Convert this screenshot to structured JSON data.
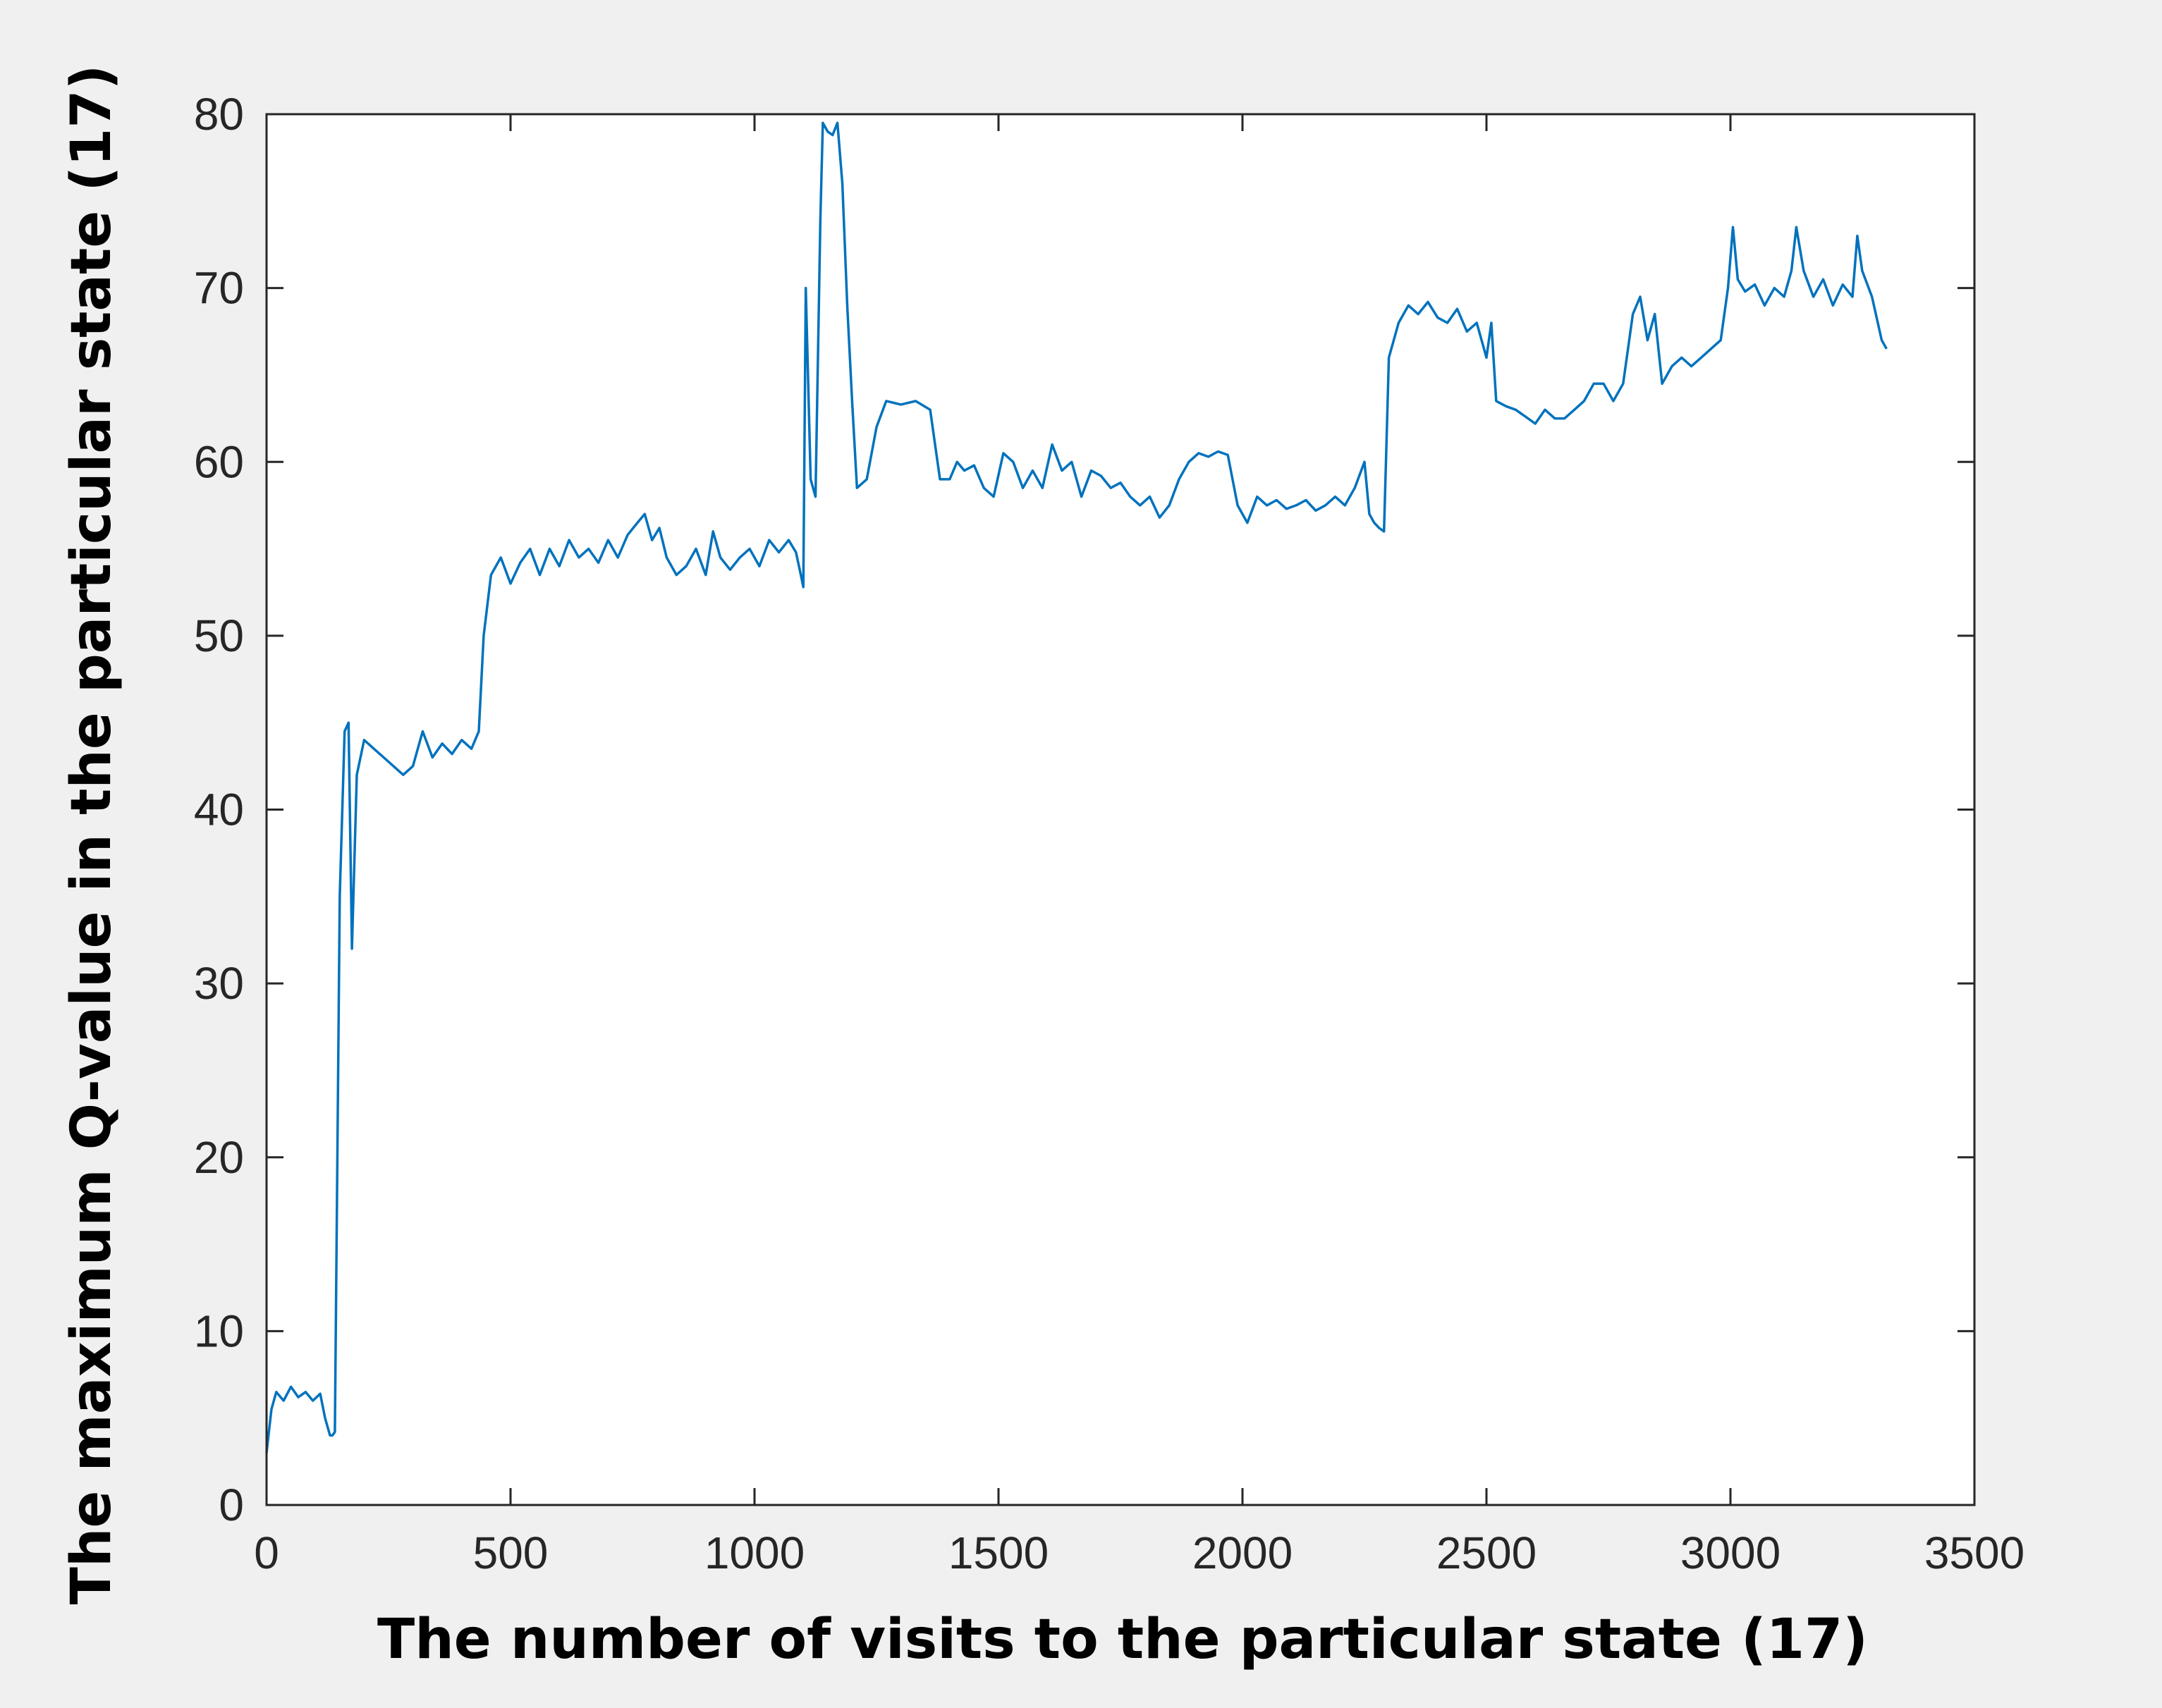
{
  "chart_data": {
    "type": "line",
    "title": "",
    "xlabel": "The number of visits to the particular state (17)",
    "ylabel": "The maximum Q-value in the particular state (17)",
    "xlim": [
      0,
      3500
    ],
    "ylim": [
      0,
      80
    ],
    "xticks": [
      0,
      500,
      1000,
      1500,
      2000,
      2500,
      3000,
      3500
    ],
    "yticks": [
      0,
      10,
      20,
      30,
      40,
      50,
      60,
      70,
      80
    ],
    "grid": false,
    "legend": "none",
    "colors": {
      "line": "#0072BD",
      "axes_background": "#ffffff",
      "figure_background": "#f0f0f0",
      "axes": "#262626"
    },
    "series": [
      {
        "x": [
          0,
          10,
          20,
          35,
          50,
          65,
          80,
          95,
          110,
          120,
          130,
          135,
          140,
          150,
          160,
          168,
          175,
          185,
          200,
          220,
          240,
          260,
          280,
          300,
          320,
          340,
          360,
          380,
          400,
          420,
          435,
          445,
          460,
          480,
          500,
          520,
          540,
          560,
          580,
          600,
          620,
          640,
          660,
          680,
          700,
          720,
          740,
          760,
          775,
          790,
          805,
          820,
          840,
          860,
          880,
          900,
          915,
          930,
          950,
          970,
          990,
          1010,
          1030,
          1050,
          1070,
          1085,
          1095,
          1100,
          1105,
          1115,
          1125,
          1135,
          1140,
          1150,
          1160,
          1170,
          1180,
          1190,
          1200,
          1210,
          1230,
          1250,
          1270,
          1300,
          1330,
          1360,
          1380,
          1400,
          1415,
          1430,
          1450,
          1470,
          1490,
          1510,
          1530,
          1550,
          1570,
          1590,
          1610,
          1630,
          1650,
          1670,
          1690,
          1710,
          1730,
          1750,
          1770,
          1790,
          1810,
          1830,
          1850,
          1870,
          1890,
          1910,
          1930,
          1950,
          1970,
          1990,
          2010,
          2030,
          2050,
          2070,
          2090,
          2110,
          2130,
          2150,
          2170,
          2190,
          2210,
          2230,
          2250,
          2260,
          2270,
          2280,
          2290,
          2300,
          2320,
          2340,
          2360,
          2380,
          2400,
          2420,
          2440,
          2460,
          2480,
          2500,
          2510,
          2520,
          2540,
          2560,
          2580,
          2600,
          2620,
          2640,
          2660,
          2680,
          2700,
          2720,
          2740,
          2760,
          2780,
          2800,
          2815,
          2830,
          2845,
          2860,
          2880,
          2900,
          2920,
          2940,
          2960,
          2980,
          2995,
          3005,
          3015,
          3030,
          3050,
          3070,
          3090,
          3110,
          3125,
          3135,
          3150,
          3170,
          3190,
          3210,
          3230,
          3250,
          3260,
          3270,
          3290,
          3310,
          3320
        ],
        "y": [
          3,
          5.5,
          6.5,
          6,
          6.8,
          6.2,
          6.5,
          6,
          6.4,
          5,
          4,
          4,
          4.2,
          35,
          44.5,
          45,
          32,
          42,
          44,
          43.5,
          43,
          42.5,
          42,
          42.5,
          44.5,
          43,
          43.8,
          43.2,
          44,
          43.5,
          44.5,
          50,
          53.5,
          54.5,
          53,
          54.2,
          55,
          53.5,
          55,
          54,
          55.5,
          54.5,
          55,
          54.2,
          55.5,
          54.5,
          55.8,
          56.5,
          57,
          55.5,
          56.2,
          54.5,
          53.5,
          54,
          55,
          53.5,
          56,
          54.5,
          53.8,
          54.5,
          55,
          54,
          55.5,
          54.8,
          55.5,
          54.8,
          53.5,
          52.8,
          70,
          59,
          58,
          74,
          79.5,
          79,
          78.8,
          79.5,
          76,
          69,
          63.5,
          58.5,
          59,
          62,
          63.5,
          63.3,
          63.5,
          63,
          59,
          59,
          60,
          59.5,
          59.8,
          58.5,
          58,
          60.5,
          60,
          58.5,
          59.5,
          58.5,
          61,
          59.5,
          60,
          58,
          59.5,
          59.2,
          58.5,
          58.8,
          58,
          57.5,
          58,
          56.8,
          57.5,
          59,
          60,
          60.5,
          60.3,
          60.6,
          60.4,
          57.5,
          56.5,
          58,
          57.5,
          57.8,
          57.3,
          57.5,
          57.8,
          57.2,
          57.5,
          58,
          57.5,
          58.5,
          60,
          57,
          56.5,
          56.2,
          56,
          66,
          68,
          69,
          68.5,
          69.2,
          68.3,
          68,
          68.8,
          67.5,
          68,
          66,
          68,
          63.5,
          63.2,
          63,
          62.6,
          62.2,
          63,
          62.5,
          62.5,
          63,
          63.5,
          64.5,
          64.5,
          63.5,
          64.5,
          68.5,
          69.5,
          67,
          68.5,
          64.5,
          65.5,
          66,
          65.5,
          66,
          66.5,
          67,
          70,
          73.5,
          70.5,
          69.8,
          70.2,
          69,
          70,
          69.5,
          71,
          73.5,
          71,
          69.5,
          70.5,
          69,
          70.2,
          69.5,
          73,
          71,
          69.5,
          67,
          66.5
        ]
      }
    ]
  }
}
